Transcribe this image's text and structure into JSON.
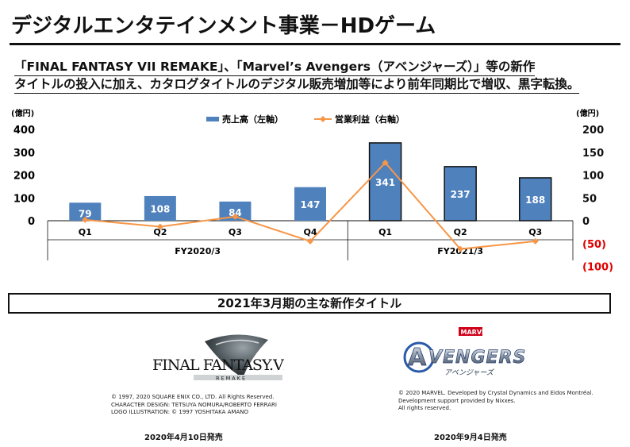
{
  "page": {
    "title": "デジタルエンタテインメント事業－HDゲーム",
    "subtitle_lines": [
      "「FINAL FANTASY VII REMAKE」、「Marvel’s Avengers（アベンジャーズ）」等の新作",
      "タイトルの投入に加え、カタログタイトルのデジタル販売増加等により前年同期比で増収、黒字転換。"
    ]
  },
  "chart_data": {
    "type": "bar",
    "categories": [
      "Q1",
      "Q2",
      "Q3",
      "Q4",
      "Q1",
      "Q2",
      "Q3"
    ],
    "groups": [
      {
        "label": "FY2020/3",
        "start": 0,
        "end": 3
      },
      {
        "label": "FY2021/3",
        "start": 4,
        "end": 6
      }
    ],
    "series": [
      {
        "name": "売上高（左軸）",
        "kind": "bar",
        "axis": "left",
        "color": "#4f81bd",
        "values": [
          79,
          108,
          84,
          147,
          341,
          237,
          188
        ]
      },
      {
        "name": "営業利益（右軸）",
        "kind": "line",
        "axis": "right",
        "color": "#f79646",
        "values": [
          2,
          -13,
          9,
          -45,
          127,
          -62,
          -45
        ]
      }
    ],
    "left_axis": {
      "unit": "(億円)",
      "ticks": [
        0,
        100,
        200,
        300,
        400
      ],
      "range": [
        0,
        400
      ]
    },
    "right_axis": {
      "unit": "(億円)",
      "ticks": [
        200,
        150,
        100,
        50,
        0,
        -50,
        -100
      ],
      "tick_labels": [
        "200",
        "150",
        "100",
        "50",
        "0",
        "(50)",
        "(100)"
      ],
      "negative_color": "#e00000",
      "range": [
        -100,
        200
      ]
    },
    "legend_position": "top-center"
  },
  "section": {
    "title": "2021年3月期の主な新作タイトル"
  },
  "titles": [
    {
      "logo_text": "FINAL FANTASY VII",
      "logo_sub": "REMAKE",
      "credits": [
        "© 1997, 2020 SQUARE ENIX CO., LTD. All Rights Reserved.",
        "CHARACTER DESIGN: TETSUYA NOMURA/ROBERTO FERRARI",
        "LOGO ILLUSTRATION: © 1997 YOSHITAKA AMANO"
      ],
      "release": "2020年4月10日発売"
    },
    {
      "logo_brand": "MARVEL",
      "logo_text": "AVENGERS",
      "logo_sub": "アベンジャーズ",
      "credits": [
        "© 2020 MARVEL. Developed by Crystal Dynamics and Eidos Montréal.",
        "Development support provided by Nixxes.",
        "All rights reserved."
      ],
      "release": "2020年9月4日発売"
    }
  ]
}
